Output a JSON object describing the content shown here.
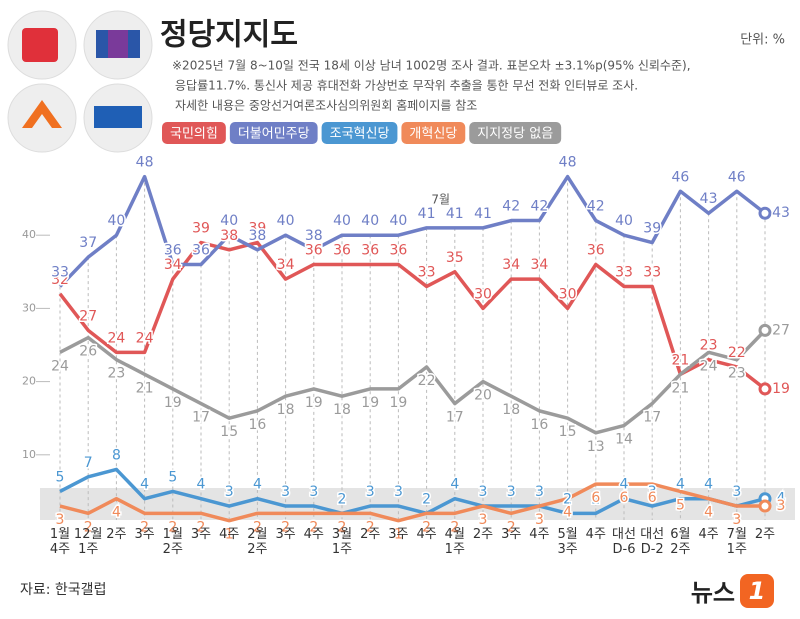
{
  "chart_data": {
    "type": "line",
    "title": "정당지지도",
    "subtitle": [
      "※2025년 7월 8~10일 전국 18세 이상 남녀 1002명 조사 결과. 표본오차 ±3.1%p(95% 신뢰수준),",
      "응답률11.7%. 통신사 제공 휴대전화 가상번호 무작위 추출을 통한 무선 전화 인터뷰로 조사.",
      "자세한 내용은 중앙선거여론조사심의위원회 홈페이지를 참조"
    ],
    "unit": "단위: %",
    "source": "자료: 한국갤럽",
    "logo": [
      "뉴스",
      "1"
    ],
    "annotation": "7월",
    "categories": [
      "1월\n4주",
      "12월\n1주",
      "2주",
      "3주",
      "1월\n2주",
      "3주",
      "4주",
      "2월\n2주",
      "3주",
      "4주",
      "3월\n1주",
      "2주",
      "3주",
      "4주",
      "4월\n1주",
      "2주",
      "3주",
      "4주",
      "5월\n3주",
      "4주",
      "대선\nD-6",
      "대선\nD-2",
      "6월\n2주",
      "4주",
      "7월\n1주",
      "2주"
    ],
    "series": [
      {
        "name": "국민의힘",
        "color": "#e05757",
        "values": [
          32,
          27,
          24,
          24,
          34,
          39,
          38,
          39,
          34,
          36,
          36,
          36,
          36,
          33,
          35,
          30,
          34,
          34,
          30,
          36,
          33,
          33,
          21,
          23,
          22,
          19
        ]
      },
      {
        "name": "더불어민주당",
        "color": "#6f7fc6",
        "values": [
          33,
          37,
          40,
          48,
          36,
          36,
          40,
          38,
          40,
          38,
          40,
          40,
          40,
          41,
          41,
          41,
          42,
          42,
          48,
          42,
          40,
          39,
          46,
          43,
          46,
          43
        ]
      },
      {
        "name": "조국혁신당",
        "color": "#4b97d2",
        "values": [
          5,
          7,
          8,
          4,
          5,
          4,
          3,
          4,
          3,
          3,
          2,
          3,
          3,
          2,
          4,
          3,
          3,
          3,
          2,
          2,
          4,
          3,
          4,
          4,
          3,
          4
        ]
      },
      {
        "name": "개혁신당",
        "color": "#f08a5a",
        "values": [
          3,
          2,
          4,
          2,
          2,
          2,
          1,
          2,
          2,
          2,
          2,
          2,
          1,
          2,
          2,
          3,
          2,
          3,
          4,
          6,
          6,
          6,
          5,
          4,
          3,
          3
        ]
      },
      {
        "name": "지지정당 없음",
        "color": "#9b9b9b",
        "values": [
          24,
          26,
          23,
          21,
          19,
          17,
          15,
          16,
          18,
          19,
          18,
          19,
          19,
          22,
          17,
          20,
          18,
          16,
          15,
          13,
          14,
          17,
          21,
          24,
          23,
          27
        ]
      }
    ],
    "ylim": [
      0,
      50
    ],
    "yticks": [
      10,
      20,
      30,
      40
    ],
    "grid": true
  }
}
